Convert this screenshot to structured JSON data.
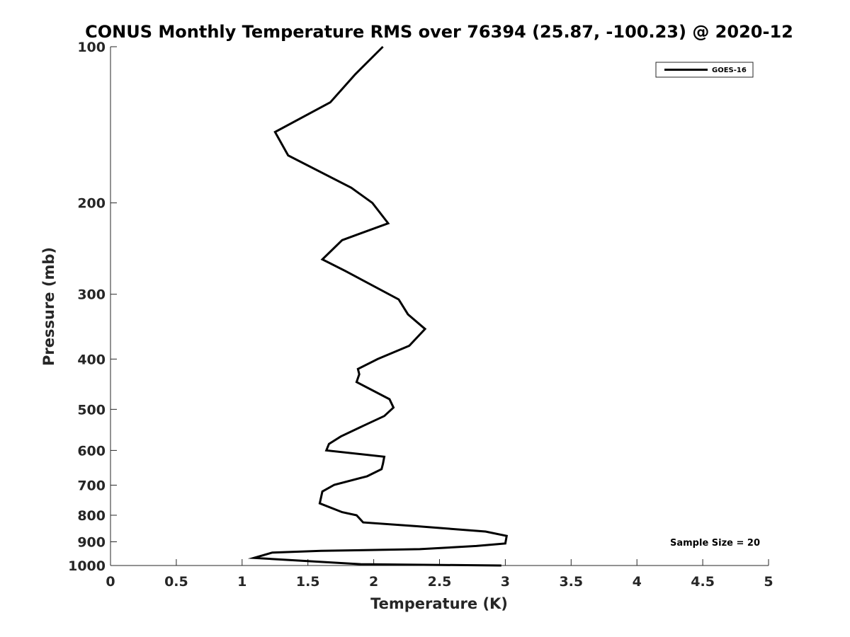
{
  "chart_data": {
    "type": "line",
    "title": "CONUS Monthly Temperature RMS over 76394 (25.87, -100.23) @ 2020-12",
    "xlabel": "Temperature (K)",
    "ylabel": "Pressure (mb)",
    "xlim": [
      0,
      5
    ],
    "ylim": [
      100,
      1000
    ],
    "yscale": "log",
    "y_reversed": true,
    "xticks": [
      0,
      0.5,
      1,
      1.5,
      2,
      2.5,
      3,
      3.5,
      4,
      4.5,
      5
    ],
    "xtick_labels": [
      "0",
      "0.5",
      "1",
      "1.5",
      "2",
      "2.5",
      "3",
      "3.5",
      "4",
      "4.5",
      "5"
    ],
    "yticks": [
      100,
      200,
      300,
      400,
      500,
      600,
      700,
      800,
      900,
      1000
    ],
    "ytick_labels": [
      "100",
      "200",
      "300",
      "400",
      "500",
      "600",
      "700",
      "800",
      "900",
      "1000"
    ],
    "grid": false,
    "legend_position": "top-right",
    "series": [
      {
        "name": "GOES-16",
        "color": "#000000",
        "x": [
          2.07,
          1.86,
          1.67,
          1.25,
          1.35,
          1.83,
          1.99,
          2.11,
          1.76,
          1.61,
          1.79,
          2.19,
          2.26,
          2.39,
          2.27,
          2.03,
          1.88,
          1.89,
          1.87,
          2.12,
          2.15,
          2.08,
          1.92,
          1.75,
          1.66,
          1.64,
          2.08,
          2.07,
          2.06,
          1.95,
          1.7,
          1.61,
          1.59,
          1.76,
          1.87,
          1.92,
          2.33,
          2.85,
          3.01,
          3.0,
          2.78,
          2.35,
          1.6,
          1.23,
          1.09,
          1.9,
          2.97
        ],
        "y": [
          100,
          113,
          128,
          146,
          162,
          187,
          200,
          219,
          236,
          257,
          271,
          307,
          328,
          350,
          377,
          400,
          418,
          428,
          443,
          478,
          496,
          515,
          538,
          564,
          583,
          600,
          617,
          637,
          652,
          673,
          699,
          720,
          759,
          789,
          800,
          826,
          840,
          860,
          877,
          907,
          917,
          930,
          937,
          944,
          967,
          994,
          1000
        ]
      }
    ],
    "annotations": [
      "Sample Size = 20"
    ]
  }
}
